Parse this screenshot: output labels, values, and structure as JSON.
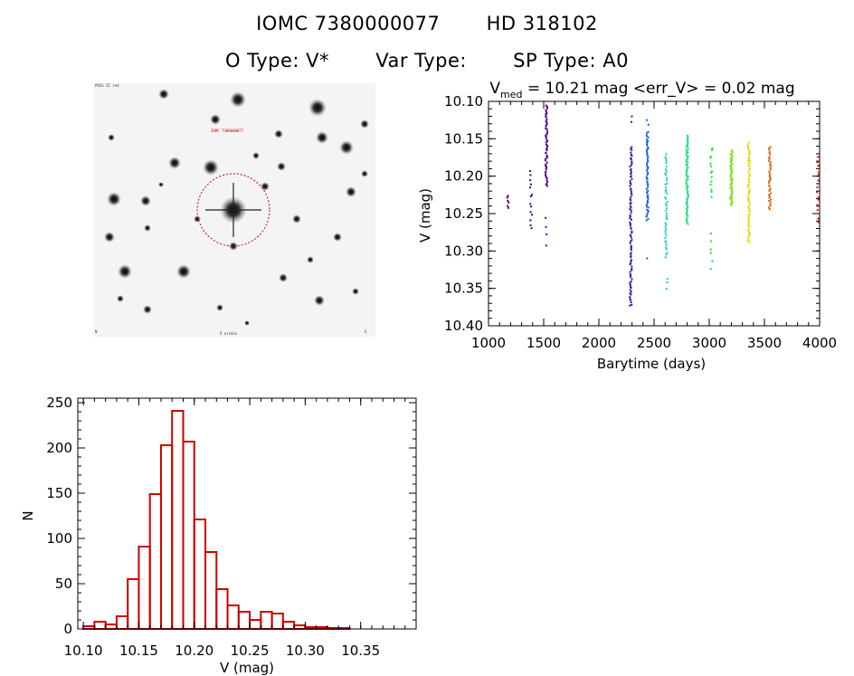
{
  "header": {
    "iomc": "IOMC 7380000077",
    "hd": "HD 318102",
    "otype": "O Type: V*",
    "vartype": "Var Type:",
    "sptype": "SP Type: A0"
  },
  "stamp": {
    "label_top": "POSS-II red",
    "label_target": "IOMC 7380000077",
    "label_bottom": "5 arcmin",
    "label_left": "N",
    "label_right": "E"
  },
  "colors": {
    "hist_bar": "#cc0000",
    "circle": "#cc0000",
    "axis": "#000000"
  },
  "chart_data": [
    {
      "type": "scatter",
      "title_parts": {
        "pre": "V",
        "sub": "med",
        "post": " = 10.21 mag <err_V> = 0.02 mag"
      },
      "xlabel": "Barytime (days)",
      "ylabel": "V (mag)",
      "xlim": [
        1000,
        4000
      ],
      "ylim": [
        10.1,
        10.4
      ],
      "y_inverted": true,
      "xticks": [
        1000,
        1500,
        2000,
        2500,
        3000,
        3500,
        4000
      ],
      "yticks": [
        10.1,
        10.15,
        10.2,
        10.25,
        10.3,
        10.35,
        10.4
      ],
      "ytick_labels": [
        "10.10",
        "10.15",
        "10.20",
        "10.25",
        "10.30",
        "10.35",
        "10.40"
      ],
      "series": [
        {
          "color": "#3a0068",
          "groups": [
            {
              "x": 1175,
              "ymin": 10.225,
              "ymax": 10.245,
              "n": 6
            }
          ]
        },
        {
          "color": "#44007a",
          "groups": [
            {
              "x": 1385,
              "ymin": 10.19,
              "ymax": 10.275,
              "n": 14
            }
          ]
        },
        {
          "color": "#55008c",
          "groups": [
            {
              "x": 1525,
              "ymin": 10.105,
              "ymax": 10.215,
              "n": 55
            },
            {
              "x": 1525,
              "ymin": 10.255,
              "ymax": 10.3,
              "n": 4
            }
          ]
        },
        {
          "color": "#3a10a8",
          "groups": [
            {
              "x": 2290,
              "ymin": 10.16,
              "ymax": 10.375,
              "n": 90
            },
            {
              "x": 2290,
              "ymin": 10.115,
              "ymax": 10.13,
              "n": 2
            }
          ]
        },
        {
          "color": "#1a60dd",
          "groups": [
            {
              "x": 2440,
              "ymin": 10.14,
              "ymax": 10.26,
              "n": 60
            },
            {
              "x": 2440,
              "ymin": 10.125,
              "ymax": 10.135,
              "n": 2
            },
            {
              "x": 2445,
              "ymin": 10.31,
              "ymax": 10.315,
              "n": 1
            }
          ]
        },
        {
          "color": "#20c8c8",
          "groups": [
            {
              "x": 2610,
              "ymin": 10.17,
              "ymax": 10.31,
              "n": 45
            },
            {
              "x": 2620,
              "ymin": 10.33,
              "ymax": 10.36,
              "n": 3
            }
          ]
        },
        {
          "color": "#20dd80",
          "groups": [
            {
              "x": 2800,
              "ymin": 10.145,
              "ymax": 10.265,
              "n": 70
            }
          ]
        },
        {
          "color": "#20dd30",
          "groups": [
            {
              "x": 3020,
              "ymin": 10.16,
              "ymax": 10.23,
              "n": 14
            },
            {
              "x": 3020,
              "ymin": 10.275,
              "ymax": 10.33,
              "n": 6
            }
          ]
        },
        {
          "color": "#80dd10",
          "groups": [
            {
              "x": 3200,
              "ymin": 10.165,
              "ymax": 10.24,
              "n": 50
            }
          ]
        },
        {
          "color": "#dddd00",
          "groups": [
            {
              "x": 3360,
              "ymin": 10.155,
              "ymax": 10.29,
              "n": 60
            }
          ]
        },
        {
          "color": "#e06010",
          "groups": [
            {
              "x": 3550,
              "ymin": 10.16,
              "ymax": 10.245,
              "n": 40
            }
          ]
        },
        {
          "color": "#dd1010",
          "groups": [
            {
              "x": 3985,
              "ymin": 10.17,
              "ymax": 10.265,
              "n": 14
            }
          ]
        }
      ]
    },
    {
      "type": "bar",
      "xlabel": "V (mag)",
      "ylabel": "N",
      "xlim": [
        10.095,
        10.4
      ],
      "ylim": [
        0,
        255
      ],
      "xticks": [
        10.1,
        10.15,
        10.2,
        10.25,
        10.3,
        10.35
      ],
      "xtick_labels": [
        "10.10",
        "10.15",
        "10.20",
        "10.25",
        "10.30",
        "10.35"
      ],
      "yticks": [
        0,
        50,
        100,
        150,
        200,
        250
      ],
      "bin_width": 0.01,
      "bin_starts": [
        10.1,
        10.11,
        10.12,
        10.13,
        10.14,
        10.15,
        10.16,
        10.17,
        10.18,
        10.19,
        10.2,
        10.21,
        10.22,
        10.23,
        10.24,
        10.25,
        10.26,
        10.27,
        10.28,
        10.29,
        10.3,
        10.31,
        10.32,
        10.33,
        10.34,
        10.35
      ],
      "values": [
        3,
        8,
        5,
        14,
        55,
        91,
        149,
        203,
        241,
        207,
        121,
        85,
        44,
        26,
        19,
        10,
        19,
        17,
        8,
        4,
        2,
        2,
        1,
        1,
        0,
        0
      ]
    }
  ]
}
